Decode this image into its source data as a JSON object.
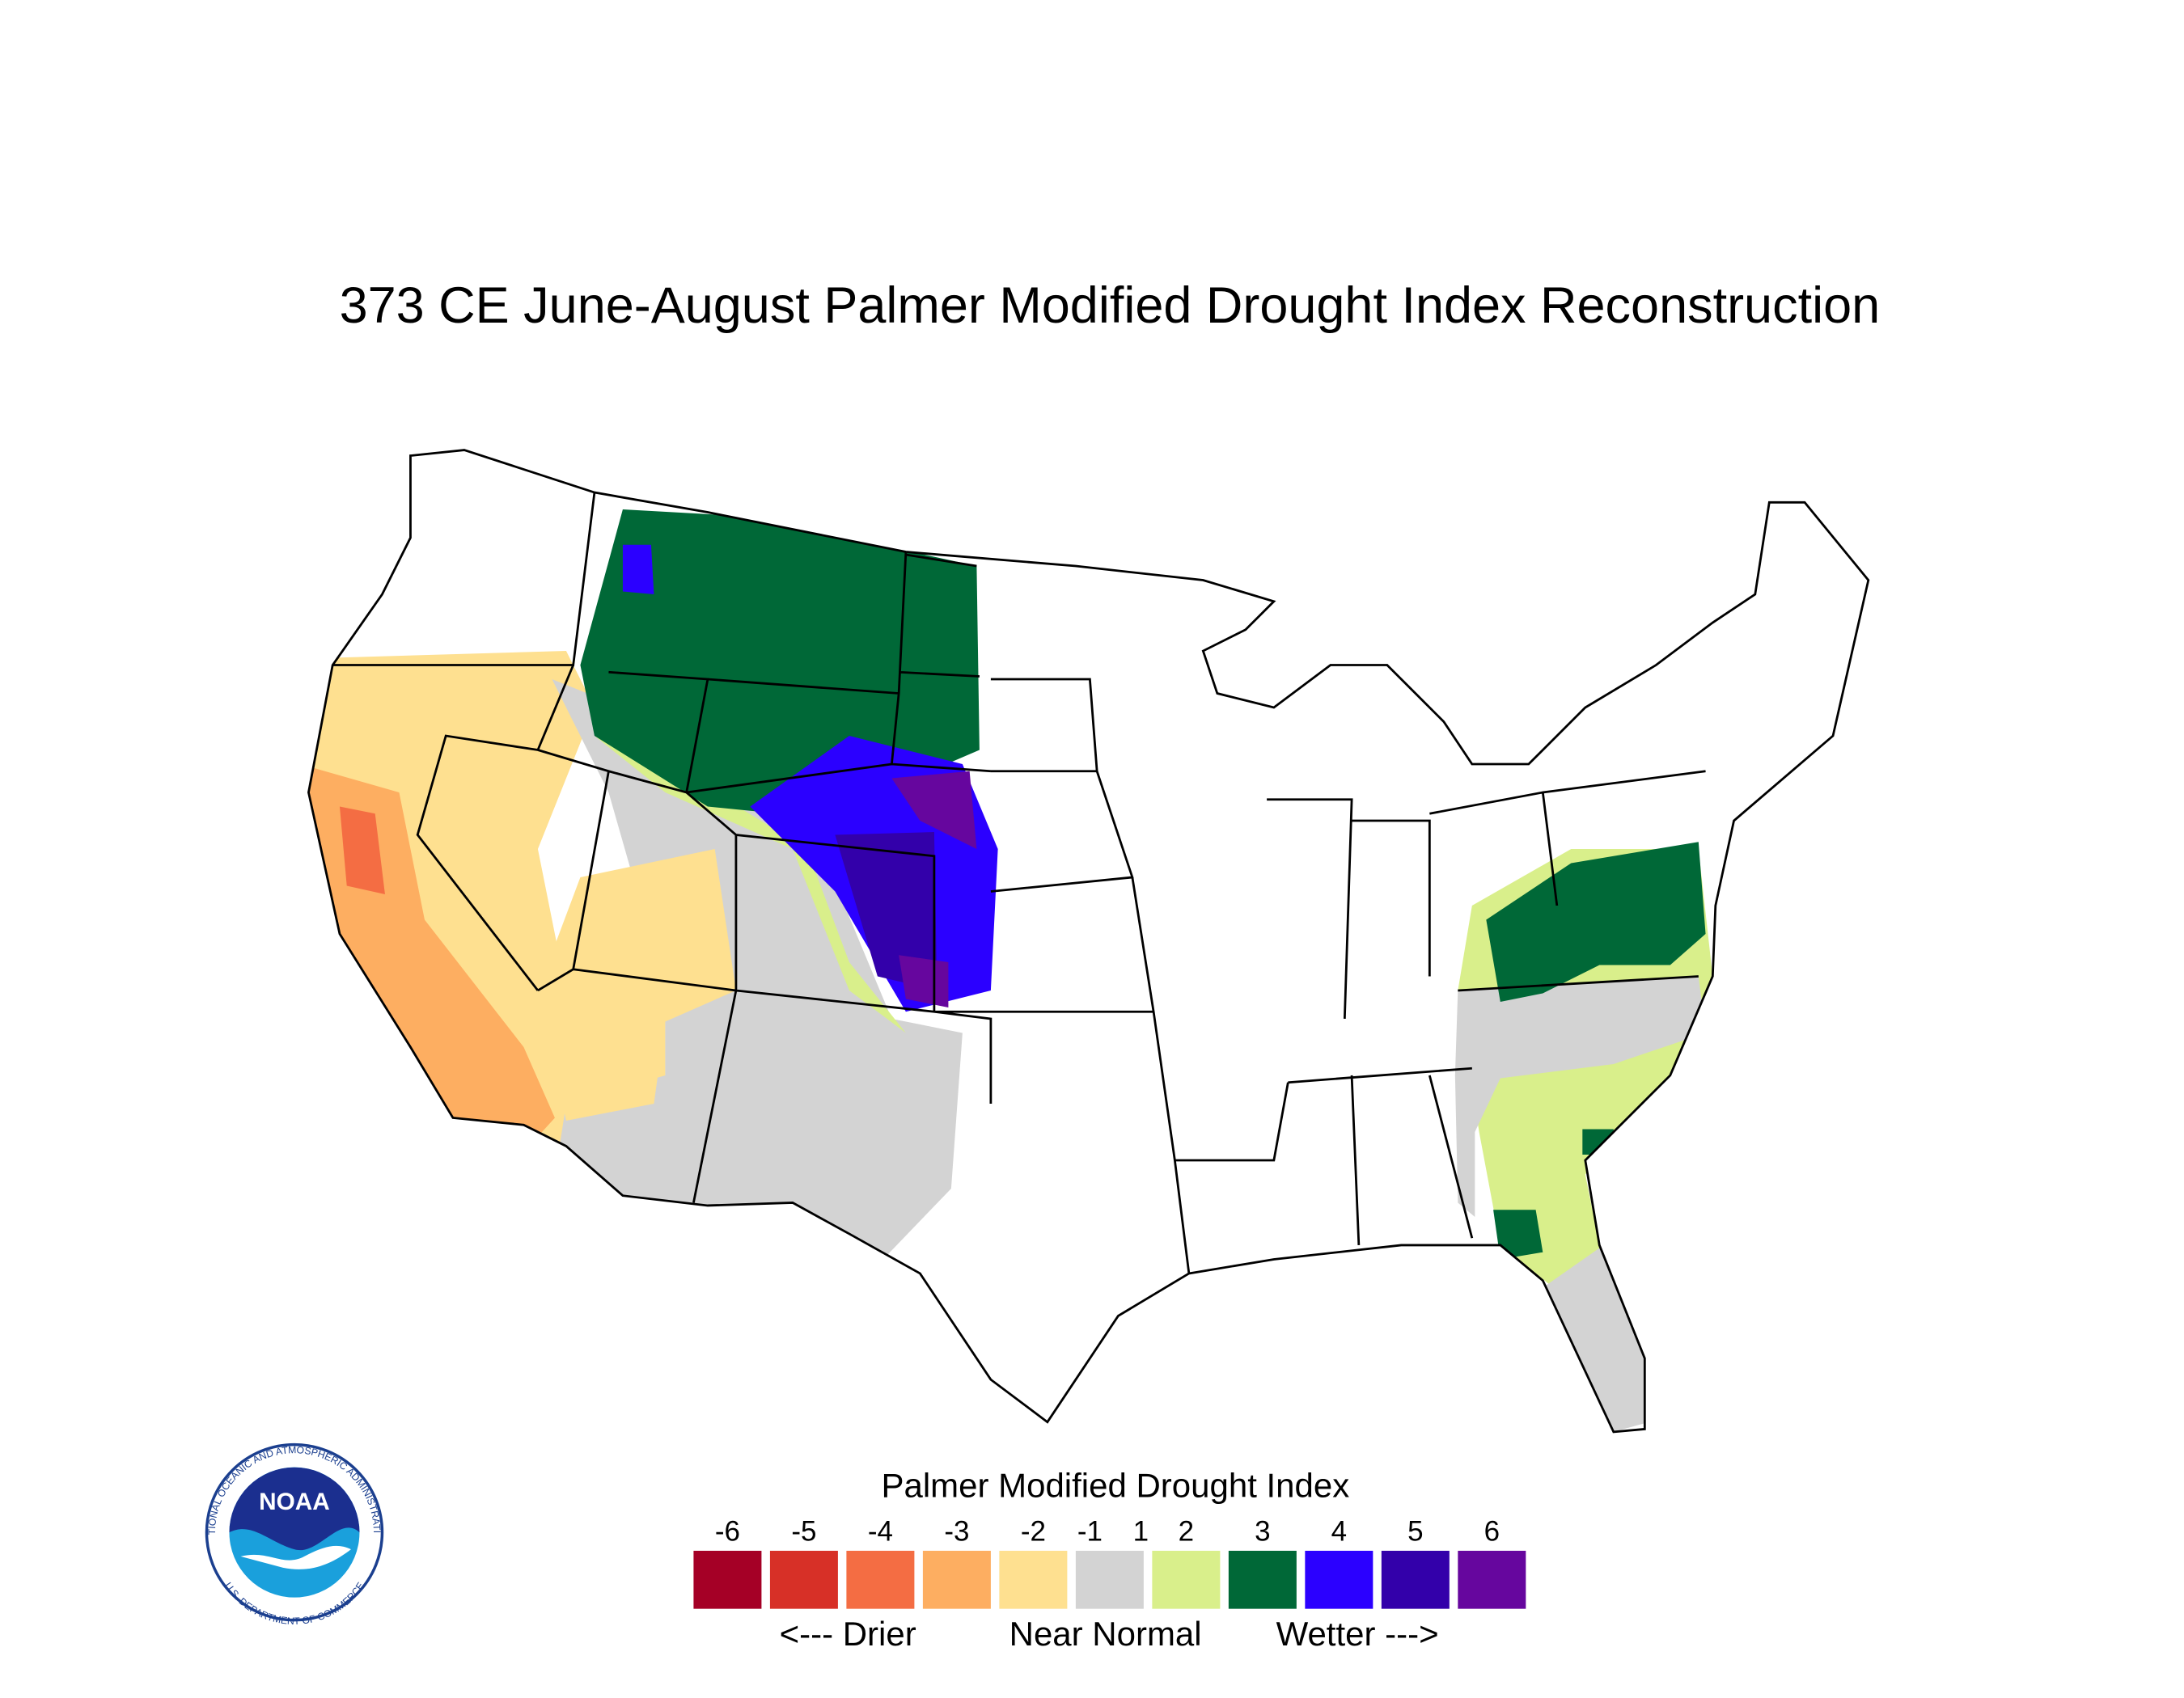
{
  "title": "373 CE  June-August  Palmer Modified Drought Index Reconstruction",
  "legend": {
    "title": "Palmer Modified Drought Index",
    "labels": [
      -6,
      -5,
      -4,
      -3,
      -2,
      -1,
      1,
      2,
      3,
      4,
      5,
      6
    ],
    "colors": [
      "#a50026",
      "#d73027",
      "#f46d43",
      "#fdae61",
      "#fee090",
      "#d3d3d3",
      "#d9ef8b",
      "#006837",
      "#2b00ff",
      "#3300aa",
      "#66069e"
    ],
    "captions": [
      "<--- Drier",
      "Near Normal",
      "Wetter --->"
    ]
  },
  "logo": {
    "name": "NOAA",
    "ring_top": "NATIONAL OCEANIC AND ATMOSPHERIC ADMINISTRATION",
    "ring_bottom": "U.S. DEPARTMENT OF COMMERCE"
  }
}
